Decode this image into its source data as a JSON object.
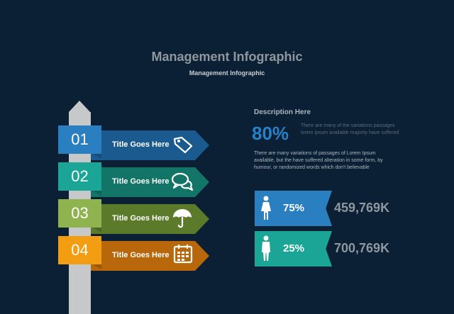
{
  "header": {
    "title": "Management Infographic",
    "subtitle": "Management Infographic"
  },
  "steps": [
    {
      "number": "01",
      "label": "Title Goes Here",
      "icon": "price-tag-icon",
      "box_color": "#2a7fc0",
      "arrow_color": "#1a5a8e",
      "fold_color": "#174c78"
    },
    {
      "number": "02",
      "label": "Title Goes Here",
      "icon": "chat-bubbles-icon",
      "box_color": "#1aa596",
      "arrow_color": "#137568",
      "fold_color": "#106357"
    },
    {
      "number": "03",
      "label": "Title Goes Here",
      "icon": "umbrella-icon",
      "box_color": "#8fb44f",
      "arrow_color": "#5b7b2b",
      "fold_color": "#4a6622"
    },
    {
      "number": "04",
      "label": "Title Goes Here",
      "icon": "calendar-icon",
      "box_color": "#f29d12",
      "arrow_color": "#b8670a",
      "fold_color": "#9a5708"
    }
  ],
  "description": {
    "heading": "Description Here",
    "percent": "80%",
    "short_text": "There are many of the variations passages lorem ipsum available majority have suffered",
    "body_text": "There are many variations of passages  of Lorem Ipsum available, but the have suffered alteration in some  form, by humour, or randomized words  which  don't believable"
  },
  "stats": [
    {
      "icon": "female-person-icon",
      "percent": "75%",
      "value": "459,769K",
      "color": "#2a7fc0"
    },
    {
      "icon": "male-person-icon",
      "percent": "25%",
      "value": "700,769K",
      "color": "#1aa596"
    }
  ]
}
